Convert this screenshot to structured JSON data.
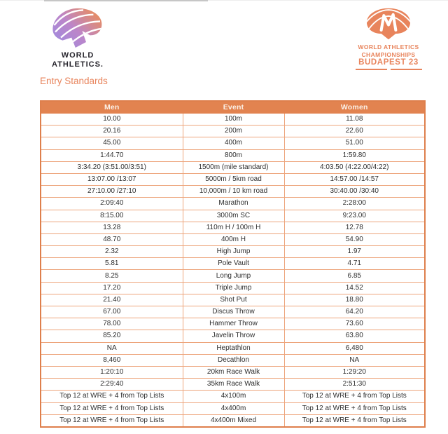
{
  "heading": "Entry Standards",
  "header": {
    "wa_logo": {
      "line1": "WORLD",
      "line2": "ATHLETICS."
    },
    "budapest_logo": {
      "line1": "WORLD ATHLETICS",
      "line2": "CHAMPIONSHIPS",
      "line3": "BUDAPEST 23"
    }
  },
  "colors": {
    "brand_orange": "#e28350",
    "table_border_outer": "#de7f4c",
    "table_border_inner": "#eda57c",
    "heading_orange": "#e8845c",
    "cell_text": "#2e2e2e",
    "wa_gradient_purple": "#9d8be0",
    "wa_gradient_orange": "#ef8e4e",
    "wa_wordmark_color": "#26242c"
  },
  "table": {
    "headers": [
      "Men",
      "Event",
      "Women"
    ],
    "rows": [
      {
        "men": "10.00",
        "event": "100m",
        "women": "11.08"
      },
      {
        "men": "20.16",
        "event": "200m",
        "women": "22.60"
      },
      {
        "men": "45.00",
        "event": "400m",
        "women": "51.00"
      },
      {
        "men": "1:44.70",
        "event": "800m",
        "women": "1:59.80"
      },
      {
        "men": "3:34.20 (3:51.00/3:51)",
        "event": "1500m (mile standard)",
        "women": "4:03.50 (4:22.00/4:22)"
      },
      {
        "men": "13:07.00 /13:07",
        "event": "5000m / 5km road",
        "women": "14:57.00 /14:57"
      },
      {
        "men": "27:10.00 /27:10",
        "event": "10,000m / 10 km road",
        "women": "30:40.00 /30:40"
      },
      {
        "men": "2:09:40",
        "event": "Marathon",
        "women": "2:28:00"
      },
      {
        "men": "8:15.00",
        "event": "3000m SC",
        "women": "9:23.00"
      },
      {
        "men": "13.28",
        "event": "110m H / 100m H",
        "women": "12.78"
      },
      {
        "men": "48.70",
        "event": "400m H",
        "women": "54.90"
      },
      {
        "men": "2.32",
        "event": "High Jump",
        "women": "1.97"
      },
      {
        "men": "5.81",
        "event": "Pole Vault",
        "women": "4.71"
      },
      {
        "men": "8.25",
        "event": "Long Jump",
        "women": "6.85"
      },
      {
        "men": "17.20",
        "event": "Triple Jump",
        "women": "14.52"
      },
      {
        "men": "21.40",
        "event": "Shot Put",
        "women": "18.80"
      },
      {
        "men": "67.00",
        "event": "Discus Throw",
        "women": "64.20"
      },
      {
        "men": "78.00",
        "event": "Hammer Throw",
        "women": "73.60"
      },
      {
        "men": "85.20",
        "event": "Javelin Throw",
        "women": "63.80"
      },
      {
        "men": "NA",
        "event": "Heptathlon",
        "women": "6,480"
      },
      {
        "men": "8,460",
        "event": "Decathlon",
        "women": "NA"
      },
      {
        "men": "1:20:10",
        "event": "20km Race Walk",
        "women": "1:29:20"
      },
      {
        "men": "2:29:40",
        "event": "35km Race Walk",
        "women": "2:51:30"
      },
      {
        "men": "Top 12 at WRE + 4 from Top Lists",
        "event": "4x100m",
        "women": "Top 12 at WRE + 4 from Top Lists"
      },
      {
        "men": "Top 12 at WRE + 4 from Top Lists",
        "event": "4x400m",
        "women": "Top 12 at WRE + 4 from Top Lists"
      },
      {
        "men": "Top 12 at WRE + 4 from Top Lists",
        "event": "4x400m Mixed",
        "women": "Top 12 at WRE + 4 from Top Lists"
      }
    ]
  }
}
